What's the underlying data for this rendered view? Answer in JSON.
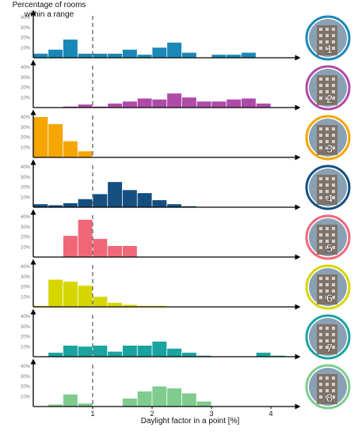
{
  "chart_data": {
    "type": "bar",
    "title": "Percentage of rooms within a range",
    "xlabel": "Daylight factor in a point [%]",
    "xlim": [
      0,
      4.4
    ],
    "ylim": [
      0,
      40
    ],
    "x_ticks": [
      "1",
      "2",
      "3",
      "4"
    ],
    "y_ticks": [
      "10%",
      "20%",
      "30%",
      "40%"
    ],
    "bin_width": 0.25,
    "bin_starts": [
      0,
      0.25,
      0.5,
      0.75,
      1.0,
      1.25,
      1.5,
      1.75,
      2.0,
      2.25,
      2.5,
      2.75,
      3.0,
      3.25,
      3.5,
      3.75,
      4.0,
      4.25
    ],
    "reference_line_x": 1,
    "panels": [
      {
        "label": "1",
        "color": "#1a88b7",
        "values": [
          4,
          8,
          18,
          4,
          4,
          4,
          8,
          3,
          10,
          15,
          5,
          0,
          3,
          3,
          5,
          0,
          0,
          0
        ]
      },
      {
        "label": "2",
        "color": "#b04aa9",
        "values": [
          0,
          0,
          1,
          3,
          1,
          4,
          6,
          9,
          8,
          14,
          10,
          6,
          6,
          8,
          9,
          4,
          0,
          0
        ]
      },
      {
        "label": "3",
        "color": "#f5a600",
        "values": [
          40,
          33,
          16,
          6,
          0,
          0,
          0,
          0,
          0,
          0,
          0,
          0,
          0,
          0,
          0,
          0,
          0,
          0
        ]
      },
      {
        "label": "4",
        "color": "#154f80",
        "values": [
          3,
          2,
          4,
          8,
          13,
          25,
          17,
          14,
          7,
          3,
          1,
          0,
          0,
          0,
          0,
          0,
          0,
          0
        ]
      },
      {
        "label": "5",
        "color": "#f06878",
        "values": [
          0,
          0,
          21,
          37,
          18,
          11,
          11,
          0,
          0,
          0,
          0,
          0,
          0,
          0,
          0,
          0,
          0,
          0
        ]
      },
      {
        "label": "6",
        "color": "#d6d600",
        "values": [
          1,
          27,
          25,
          21,
          10,
          4,
          2,
          1,
          1,
          0,
          0,
          0,
          0,
          0,
          0,
          0,
          0,
          0
        ]
      },
      {
        "label": "7",
        "color": "#1aa4a0",
        "values": [
          0,
          4,
          11,
          10,
          11,
          5,
          11,
          11,
          15,
          8,
          4,
          1,
          0,
          0,
          0,
          4,
          1,
          0
        ]
      },
      {
        "label": "8",
        "color": "#7fcc8e",
        "values": [
          0,
          2,
          12,
          3,
          0,
          0,
          8,
          15,
          20,
          18,
          13,
          5,
          0,
          0,
          0,
          0,
          0,
          0
        ]
      }
    ]
  }
}
